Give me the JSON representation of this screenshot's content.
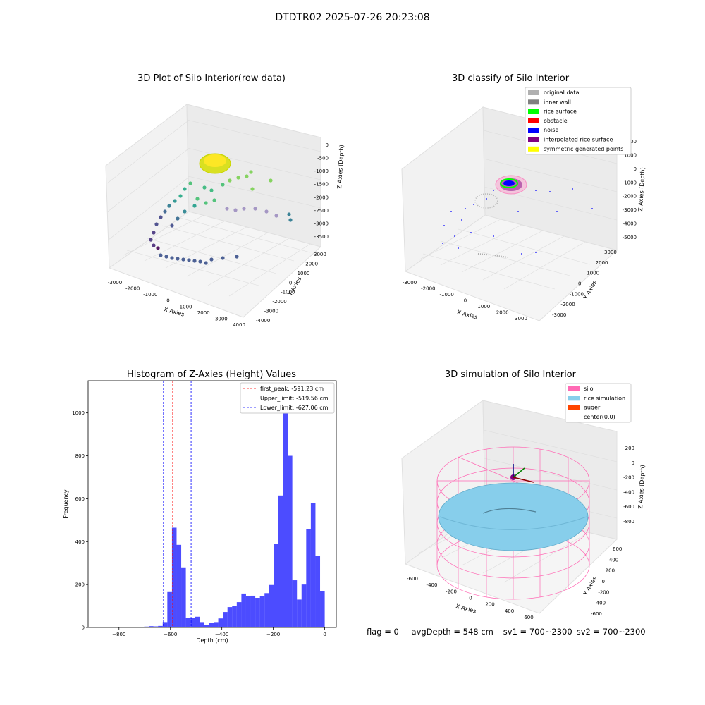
{
  "suptitle": "DTDTR02 2025-07-26 20:23:08",
  "panels": {
    "raw": {
      "title": "3D Plot of Silo Interior(row data)",
      "xlabel": "X Axies",
      "ylabel": "Y Axies",
      "zlabel": "Z Axies (Depth)",
      "xticks": [
        "-3000",
        "-2000",
        "-1000",
        "0",
        "1000",
        "2000",
        "3000",
        "4000"
      ],
      "yticks": [
        "-4000",
        "-3000",
        "-2000",
        "-1000",
        "0",
        "1000",
        "2000",
        "3000"
      ],
      "zticks": [
        "0",
        "-500",
        "-1000",
        "-1500",
        "-2000",
        "-2500",
        "-3000",
        "-3500"
      ]
    },
    "classify": {
      "title": "3D classify of Silo Interior",
      "xlabel": "X Axies",
      "ylabel": "Y Axies",
      "zlabel": "Z Axies (Depth)",
      "xticks": [
        "-3000",
        "-2000",
        "-1000",
        "0",
        "1000",
        "2000",
        "3000"
      ],
      "yticks": [
        "-3000",
        "-2000",
        "-1000",
        "0",
        "1000",
        "2000",
        "3000"
      ],
      "zticks": [
        "2000",
        "1000",
        "0",
        "-1000",
        "-2000",
        "-3000",
        "-4000",
        "-5000"
      ],
      "legend": [
        {
          "label": "original data",
          "color": "#b0b0b0"
        },
        {
          "label": "inner wall",
          "color": "#808080"
        },
        {
          "label": "rice surface",
          "color": "#00ff00"
        },
        {
          "label": "obstacle",
          "color": "#ff0000"
        },
        {
          "label": "noise",
          "color": "#0000ff"
        },
        {
          "label": "interpolated rice surface",
          "color": "#800080"
        },
        {
          "label": "symmetric generated points",
          "color": "#ffff00"
        }
      ]
    },
    "simulation": {
      "title": "3D simulation of Silo Interior",
      "xlabel": "X Axies",
      "ylabel": "Y Axies",
      "zlabel": "Z Axies (Depth)",
      "xticks": [
        "-600",
        "-400",
        "-200",
        "0",
        "200",
        "400",
        "600"
      ],
      "yticks": [
        "-600",
        "-400",
        "-200",
        "0",
        "200",
        "400",
        "600"
      ],
      "zticks": [
        "200",
        "0",
        "-200",
        "-400",
        "-600",
        "-800"
      ],
      "legend": [
        {
          "label": "silo",
          "color": "#ff69b4"
        },
        {
          "label": "rice simulation",
          "color": "#87ceeb"
        },
        {
          "label": "auger",
          "color": "#ff4500"
        },
        {
          "label": "center(0,0)",
          "color": ""
        }
      ]
    }
  },
  "status": {
    "flag": "flag = 0",
    "avg": "avgDepth = 548 cm",
    "sv1": "sv1 = 700~2300",
    "sv2": "sv2 = 700~2300"
  },
  "chart_data": {
    "type": "bar",
    "title": "Histogram of Z-Axies (Height) Values",
    "xlabel": "Depth (cm)",
    "ylabel": "Frequency",
    "xlim": [
      -920,
      45
    ],
    "ylim": [
      0,
      1150
    ],
    "xticks": [
      -800,
      -600,
      -400,
      -200,
      0
    ],
    "yticks": [
      0,
      200,
      400,
      600,
      800,
      1000
    ],
    "bar_color": "#0000ff",
    "bins": [
      {
        "x0": -900,
        "x1": -882,
        "count": 2
      },
      {
        "x0": -846,
        "x1": -828,
        "count": 1
      },
      {
        "x0": -828,
        "x1": -810,
        "count": 2
      },
      {
        "x0": -792,
        "x1": -774,
        "count": 2
      },
      {
        "x0": -720,
        "x1": -702,
        "count": 1
      },
      {
        "x0": -702,
        "x1": -684,
        "count": 4
      },
      {
        "x0": -684,
        "x1": -666,
        "count": 6
      },
      {
        "x0": -666,
        "x1": -648,
        "count": 5
      },
      {
        "x0": -648,
        "x1": -630,
        "count": 7
      },
      {
        "x0": -630,
        "x1": -612,
        "count": 25
      },
      {
        "x0": -612,
        "x1": -594,
        "count": 165
      },
      {
        "x0": -594,
        "x1": -576,
        "count": 465
      },
      {
        "x0": -576,
        "x1": -558,
        "count": 385
      },
      {
        "x0": -558,
        "x1": -540,
        "count": 280
      },
      {
        "x0": -540,
        "x1": -522,
        "count": 45
      },
      {
        "x0": -522,
        "x1": -504,
        "count": 45
      },
      {
        "x0": -504,
        "x1": -486,
        "count": 50
      },
      {
        "x0": -486,
        "x1": -468,
        "count": 25
      },
      {
        "x0": -468,
        "x1": -450,
        "count": 12
      },
      {
        "x0": -450,
        "x1": -432,
        "count": 20
      },
      {
        "x0": -432,
        "x1": -414,
        "count": 25
      },
      {
        "x0": -414,
        "x1": -396,
        "count": 42
      },
      {
        "x0": -396,
        "x1": -378,
        "count": 72
      },
      {
        "x0": -378,
        "x1": -360,
        "count": 95
      },
      {
        "x0": -360,
        "x1": -342,
        "count": 100
      },
      {
        "x0": -342,
        "x1": -324,
        "count": 118
      },
      {
        "x0": -324,
        "x1": -306,
        "count": 158
      },
      {
        "x0": -306,
        "x1": -288,
        "count": 145
      },
      {
        "x0": -288,
        "x1": -270,
        "count": 148
      },
      {
        "x0": -270,
        "x1": -252,
        "count": 138
      },
      {
        "x0": -252,
        "x1": -234,
        "count": 145
      },
      {
        "x0": -234,
        "x1": -216,
        "count": 160
      },
      {
        "x0": -216,
        "x1": -198,
        "count": 198
      },
      {
        "x0": -198,
        "x1": -180,
        "count": 390
      },
      {
        "x0": -180,
        "x1": -162,
        "count": 615
      },
      {
        "x0": -162,
        "x1": -144,
        "count": 1090
      },
      {
        "x0": -144,
        "x1": -126,
        "count": 800
      },
      {
        "x0": -126,
        "x1": -108,
        "count": 220
      },
      {
        "x0": -108,
        "x1": -90,
        "count": 130
      },
      {
        "x0": -90,
        "x1": -72,
        "count": 200
      },
      {
        "x0": -72,
        "x1": -54,
        "count": 460
      },
      {
        "x0": -54,
        "x1": -36,
        "count": 580
      },
      {
        "x0": -36,
        "x1": -18,
        "count": 335
      },
      {
        "x0": -18,
        "x1": 0,
        "count": 170
      }
    ],
    "lines": [
      {
        "x": -591.23,
        "color": "#ff0000",
        "label": "first_peak: -591.23 cm"
      },
      {
        "x": -519.56,
        "color": "#0000ff",
        "label": "Upper_limit: -519.56 cm"
      },
      {
        "x": -627.06,
        "color": "#0000ff",
        "label": "Lower_limit: -627.06 cm"
      }
    ]
  }
}
